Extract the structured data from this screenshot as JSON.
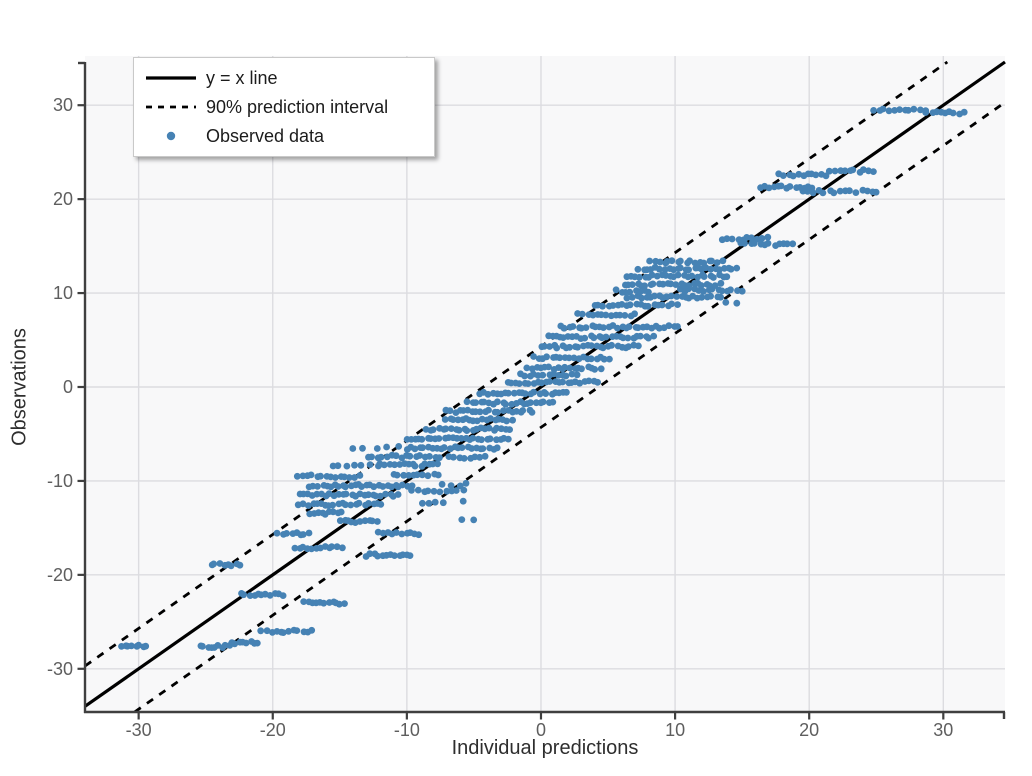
{
  "chart_data": {
    "type": "scatter",
    "title": "",
    "xlabel": "Individual predictions",
    "ylabel": "Observations",
    "xlim": [
      -34.0,
      34.6
    ],
    "ylim": [
      -34.6,
      34.6
    ],
    "x_ticks": [
      -30,
      -20,
      -10,
      0,
      10,
      20,
      30
    ],
    "y_ticks": [
      -30,
      -20,
      -10,
      0,
      10,
      20,
      30
    ],
    "grid": true,
    "legend_position": "top-left",
    "reference_lines": [
      {
        "label": "y = x line",
        "slope": 1,
        "intercept": 0,
        "style": "solid",
        "color": "#000000",
        "width": 3.2
      },
      {
        "label": "90% prediction interval",
        "slope": 1,
        "intercept": 4.3,
        "style": "dashed",
        "color": "#000000",
        "width": 2.8
      },
      {
        "label": "90% prediction interval",
        "slope": 1,
        "intercept": -4.3,
        "style": "dashed",
        "color": "#000000",
        "width": 2.8
      }
    ],
    "scatter_series": {
      "label": "Observed data",
      "color": "#4682B4",
      "point_radius_px": 3.4,
      "bands_format": "[y_value, x_start, x_end, n_points] — horizontal clusters of observed points",
      "bands": [
        [
          -27.6,
          -31.3,
          -29.4,
          8
        ],
        [
          -27.6,
          -25.4,
          -23.2,
          9
        ],
        [
          -27.2,
          -23.0,
          -21.1,
          8
        ],
        [
          -26.0,
          -20.8,
          -17.1,
          12
        ],
        [
          -23.0,
          -17.6,
          -14.7,
          11
        ],
        [
          -22.1,
          -22.4,
          -19.2,
          11
        ],
        [
          -18.9,
          -24.6,
          -22.4,
          8
        ],
        [
          -17.9,
          -13.0,
          -9.7,
          12
        ],
        [
          -17.1,
          -18.3,
          -14.9,
          12
        ],
        [
          -15.6,
          -19.6,
          -17.3,
          8
        ],
        [
          -15.6,
          -12.2,
          -9.0,
          10
        ],
        [
          -14.3,
          -15.0,
          -12.2,
          10
        ],
        [
          -14.1,
          -5.9,
          -5.0,
          2
        ],
        [
          -13.4,
          -17.2,
          -14.8,
          9
        ],
        [
          -12.5,
          -18.0,
          -11.9,
          20
        ],
        [
          -12.4,
          -8.9,
          -7.4,
          4
        ],
        [
          -12.2,
          -5.9,
          -5.6,
          1
        ],
        [
          -11.5,
          -18.0,
          -10.6,
          24
        ],
        [
          -11.1,
          -9.6,
          -5.8,
          10
        ],
        [
          -10.5,
          -17.2,
          -9.7,
          26
        ],
        [
          -10.4,
          -7.3,
          -5.5,
          4
        ],
        [
          -9.5,
          -18.1,
          -13.6,
          14
        ],
        [
          -9.4,
          -11.0,
          -7.6,
          10
        ],
        [
          -8.4,
          -15.6,
          -12.2,
          7
        ],
        [
          -8.3,
          -11.9,
          -7.7,
          14
        ],
        [
          -7.4,
          -12.9,
          -7.6,
          16
        ],
        [
          -7.5,
          -6.9,
          -4.2,
          8
        ],
        [
          -6.4,
          -14.1,
          -10.5,
          5
        ],
        [
          -6.5,
          -10.0,
          -3.3,
          22
        ],
        [
          -5.5,
          -10.1,
          -2.4,
          25
        ],
        [
          -4.5,
          -8.6,
          -2.3,
          21
        ],
        [
          -3.5,
          -7.1,
          -2.2,
          17
        ],
        [
          -2.6,
          -7.0,
          -0.6,
          21
        ],
        [
          -1.7,
          -5.4,
          0.9,
          21
        ],
        [
          -0.7,
          -4.5,
          2.0,
          22
        ],
        [
          0.5,
          -2.5,
          4.2,
          22
        ],
        [
          1.3,
          -1.5,
          2.6,
          13
        ],
        [
          2.0,
          -1.0,
          4.4,
          18
        ],
        [
          3.1,
          -0.5,
          5.1,
          18
        ],
        [
          4.3,
          0.0,
          7.2,
          24
        ],
        [
          5.3,
          0.5,
          8.4,
          26
        ],
        [
          6.4,
          1.5,
          10.2,
          28
        ],
        [
          7.7,
          2.8,
          7.0,
          13
        ],
        [
          8.7,
          4.0,
          10.1,
          19
        ],
        [
          9.0,
          13.9,
          14.5,
          2
        ],
        [
          9.6,
          6.5,
          13.4,
          22
        ],
        [
          10.2,
          5.7,
          8.1,
          8
        ],
        [
          10.3,
          10.4,
          14.9,
          14
        ],
        [
          10.9,
          6.2,
          13.3,
          23
        ],
        [
          11.8,
          6.4,
          13.9,
          24
        ],
        [
          12.6,
          7.3,
          14.6,
          24
        ],
        [
          13.3,
          8.2,
          13.5,
          17
        ],
        [
          15.2,
          14.9,
          18.8,
          12
        ],
        [
          15.8,
          13.6,
          16.9,
          10
        ],
        [
          20.8,
          19.5,
          25.1,
          15
        ],
        [
          21.3,
          16.3,
          20.3,
          13
        ],
        [
          22.6,
          17.8,
          21.3,
          11
        ],
        [
          23.0,
          21.5,
          24.8,
          10
        ],
        [
          29.5,
          24.8,
          28.6,
          11
        ],
        [
          29.2,
          28.8,
          31.5,
          9
        ]
      ]
    }
  },
  "legend": {
    "items": [
      {
        "label": "y = x line",
        "key": "solid-line"
      },
      {
        "label": "90% prediction interval",
        "key": "dashed-line"
      },
      {
        "label": "Observed data",
        "key": "point"
      }
    ]
  },
  "style": {
    "panel_bg": "#f8f8f9",
    "grid_color": "#dcdce0",
    "spine_color": "#3f3f3f",
    "tick_label_color": "#5e5e5e",
    "axis_title_color": "#2e2e2e",
    "line_color": "#000000",
    "point_color": "#4682B4"
  }
}
